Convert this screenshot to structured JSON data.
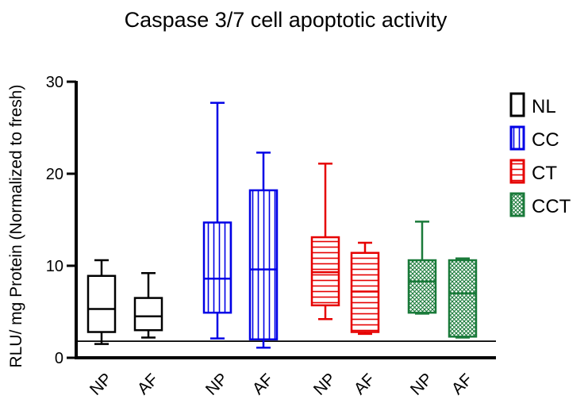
{
  "chart_data": {
    "type": "box",
    "title": "Caspase 3/7 cell apoptotic activity",
    "ylabel": "RLU/ mg Protein (Normalized to fresh)",
    "xlabel": "",
    "ylim": [
      0,
      30
    ],
    "yticks": [
      0,
      10,
      20,
      30
    ],
    "reference_line": 1.8,
    "grid": false,
    "legend_position": "right",
    "series": [
      {
        "name": "NL",
        "color": "#000000",
        "pattern": "none",
        "boxes": [
          {
            "label": "NP",
            "min": 1.5,
            "q1": 2.8,
            "median": 5.3,
            "q3": 8.9,
            "max": 10.6
          },
          {
            "label": "AF",
            "min": 2.2,
            "q1": 3.0,
            "median": 4.5,
            "q3": 6.5,
            "max": 9.2
          }
        ]
      },
      {
        "name": "CC",
        "color": "#0000e6",
        "pattern": "vertical",
        "boxes": [
          {
            "label": "NP",
            "min": 2.1,
            "q1": 4.9,
            "median": 8.6,
            "q3": 14.7,
            "max": 27.7
          },
          {
            "label": "AF",
            "min": 1.1,
            "q1": 2.0,
            "median": 9.6,
            "q3": 18.2,
            "max": 22.3
          }
        ]
      },
      {
        "name": "CT",
        "color": "#e60000",
        "pattern": "horizontal",
        "boxes": [
          {
            "label": "NP",
            "min": 4.2,
            "q1": 5.7,
            "median": 9.3,
            "q3": 13.1,
            "max": 21.1
          },
          {
            "label": "AF",
            "min": 2.6,
            "q1": 2.8,
            "median": 7.2,
            "q3": 11.4,
            "max": 12.5
          }
        ]
      },
      {
        "name": "CCT",
        "color": "#1a7a3a",
        "pattern": "crosshatch",
        "boxes": [
          {
            "label": "NP",
            "min": 4.8,
            "q1": 4.9,
            "median": 8.3,
            "q3": 10.6,
            "max": 14.8
          },
          {
            "label": "AF",
            "min": 2.2,
            "q1": 2.3,
            "median": 7.0,
            "q3": 10.6,
            "max": 10.8
          }
        ]
      }
    ]
  }
}
